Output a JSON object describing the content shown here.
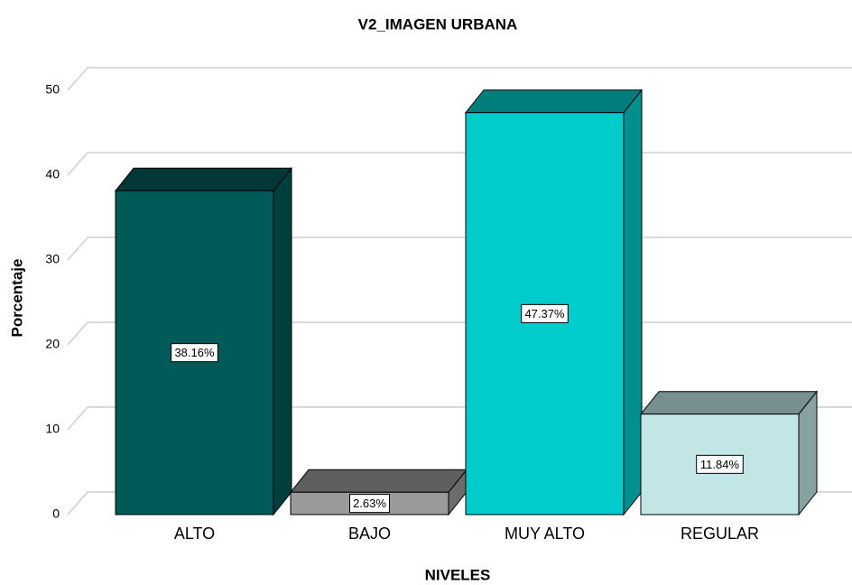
{
  "chart_data": {
    "type": "bar3d",
    "title": "V2_IMAGEN URBANA",
    "x_label": "NIVELES",
    "y_label": "Porcentaje",
    "categories": [
      "ALTO",
      "BAJO",
      "MUY ALTO",
      "REGULAR"
    ],
    "values": [
      38.16,
      2.63,
      47.37,
      11.84
    ],
    "value_labels": [
      "38.16%",
      "2.63%",
      "47.37%",
      "11.84%"
    ],
    "colors": [
      "#005a58",
      "#9a9a9a",
      "#00cccc",
      "#c2e6e6"
    ],
    "ylim": [
      0,
      50
    ],
    "yticks": [
      0,
      10,
      20,
      30,
      40,
      50
    ],
    "grid": true
  }
}
